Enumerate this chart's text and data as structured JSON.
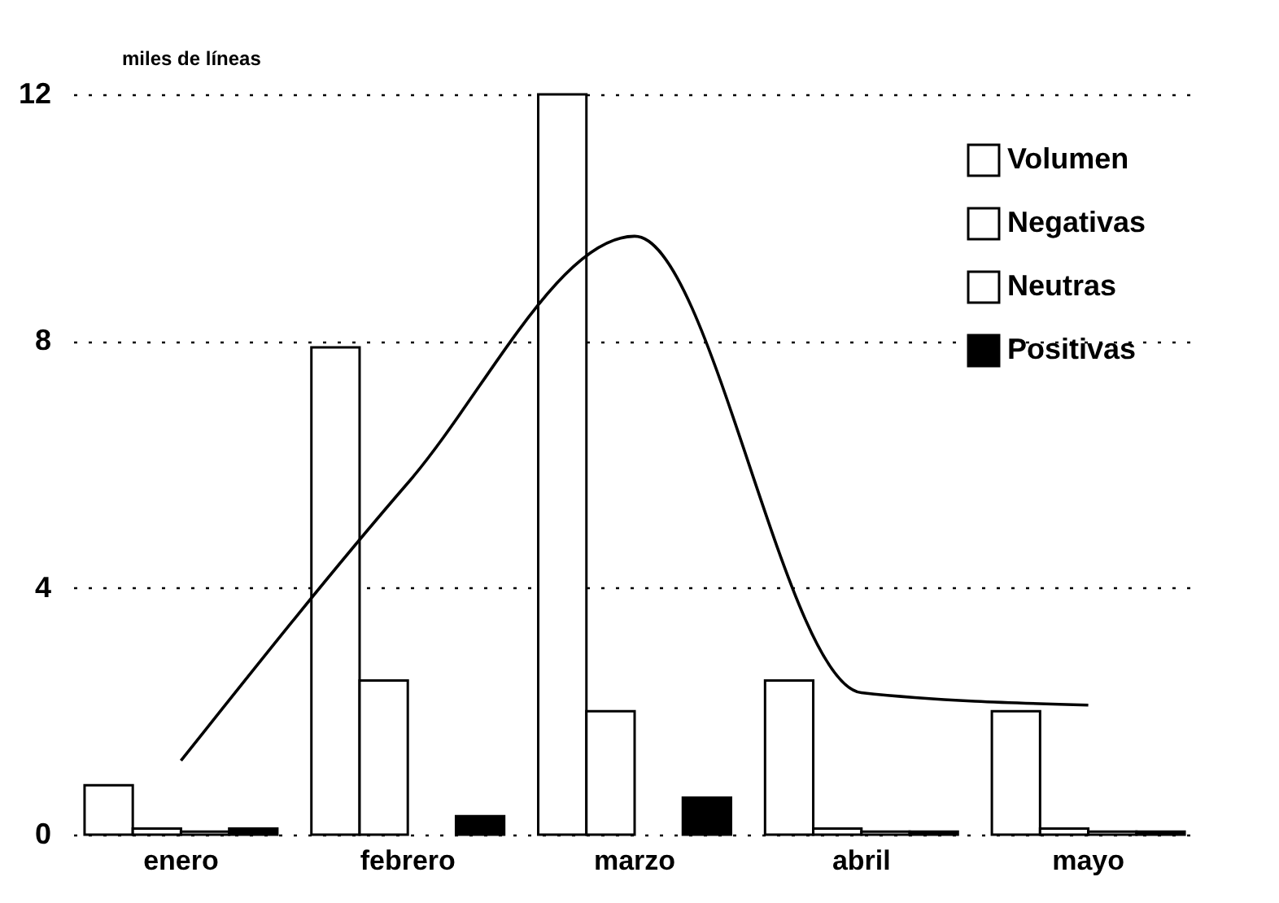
{
  "chart_data": {
    "type": "bar",
    "ylabel": "miles de líneas",
    "categories": [
      "enero",
      "febrero",
      "marzo",
      "abril",
      "mayo"
    ],
    "series": [
      {
        "name": "Volumen",
        "color": "#ffffff",
        "values": [
          0.8,
          7.9,
          12,
          2.5,
          2
        ]
      },
      {
        "name": "Negativas",
        "color": "#ffffff",
        "values": [
          0.1,
          2.5,
          2,
          0.1,
          0.1
        ]
      },
      {
        "name": "Neutras",
        "color": "#ffffff",
        "values": [
          0.05,
          null,
          null,
          0.05,
          0.05
        ]
      },
      {
        "name": "Positivas",
        "color": "#000000",
        "values": [
          0.1,
          0.3,
          0.6,
          0.05,
          0.05
        ]
      },
      {
        "type": "line",
        "color": "#000000",
        "values": [
          1.2,
          5.7,
          9.7,
          2.3,
          2.1
        ]
      }
    ],
    "ylim": [
      0,
      12
    ],
    "yticks": [
      0,
      4,
      8,
      12
    ],
    "grid": "y",
    "legend": "top right"
  }
}
